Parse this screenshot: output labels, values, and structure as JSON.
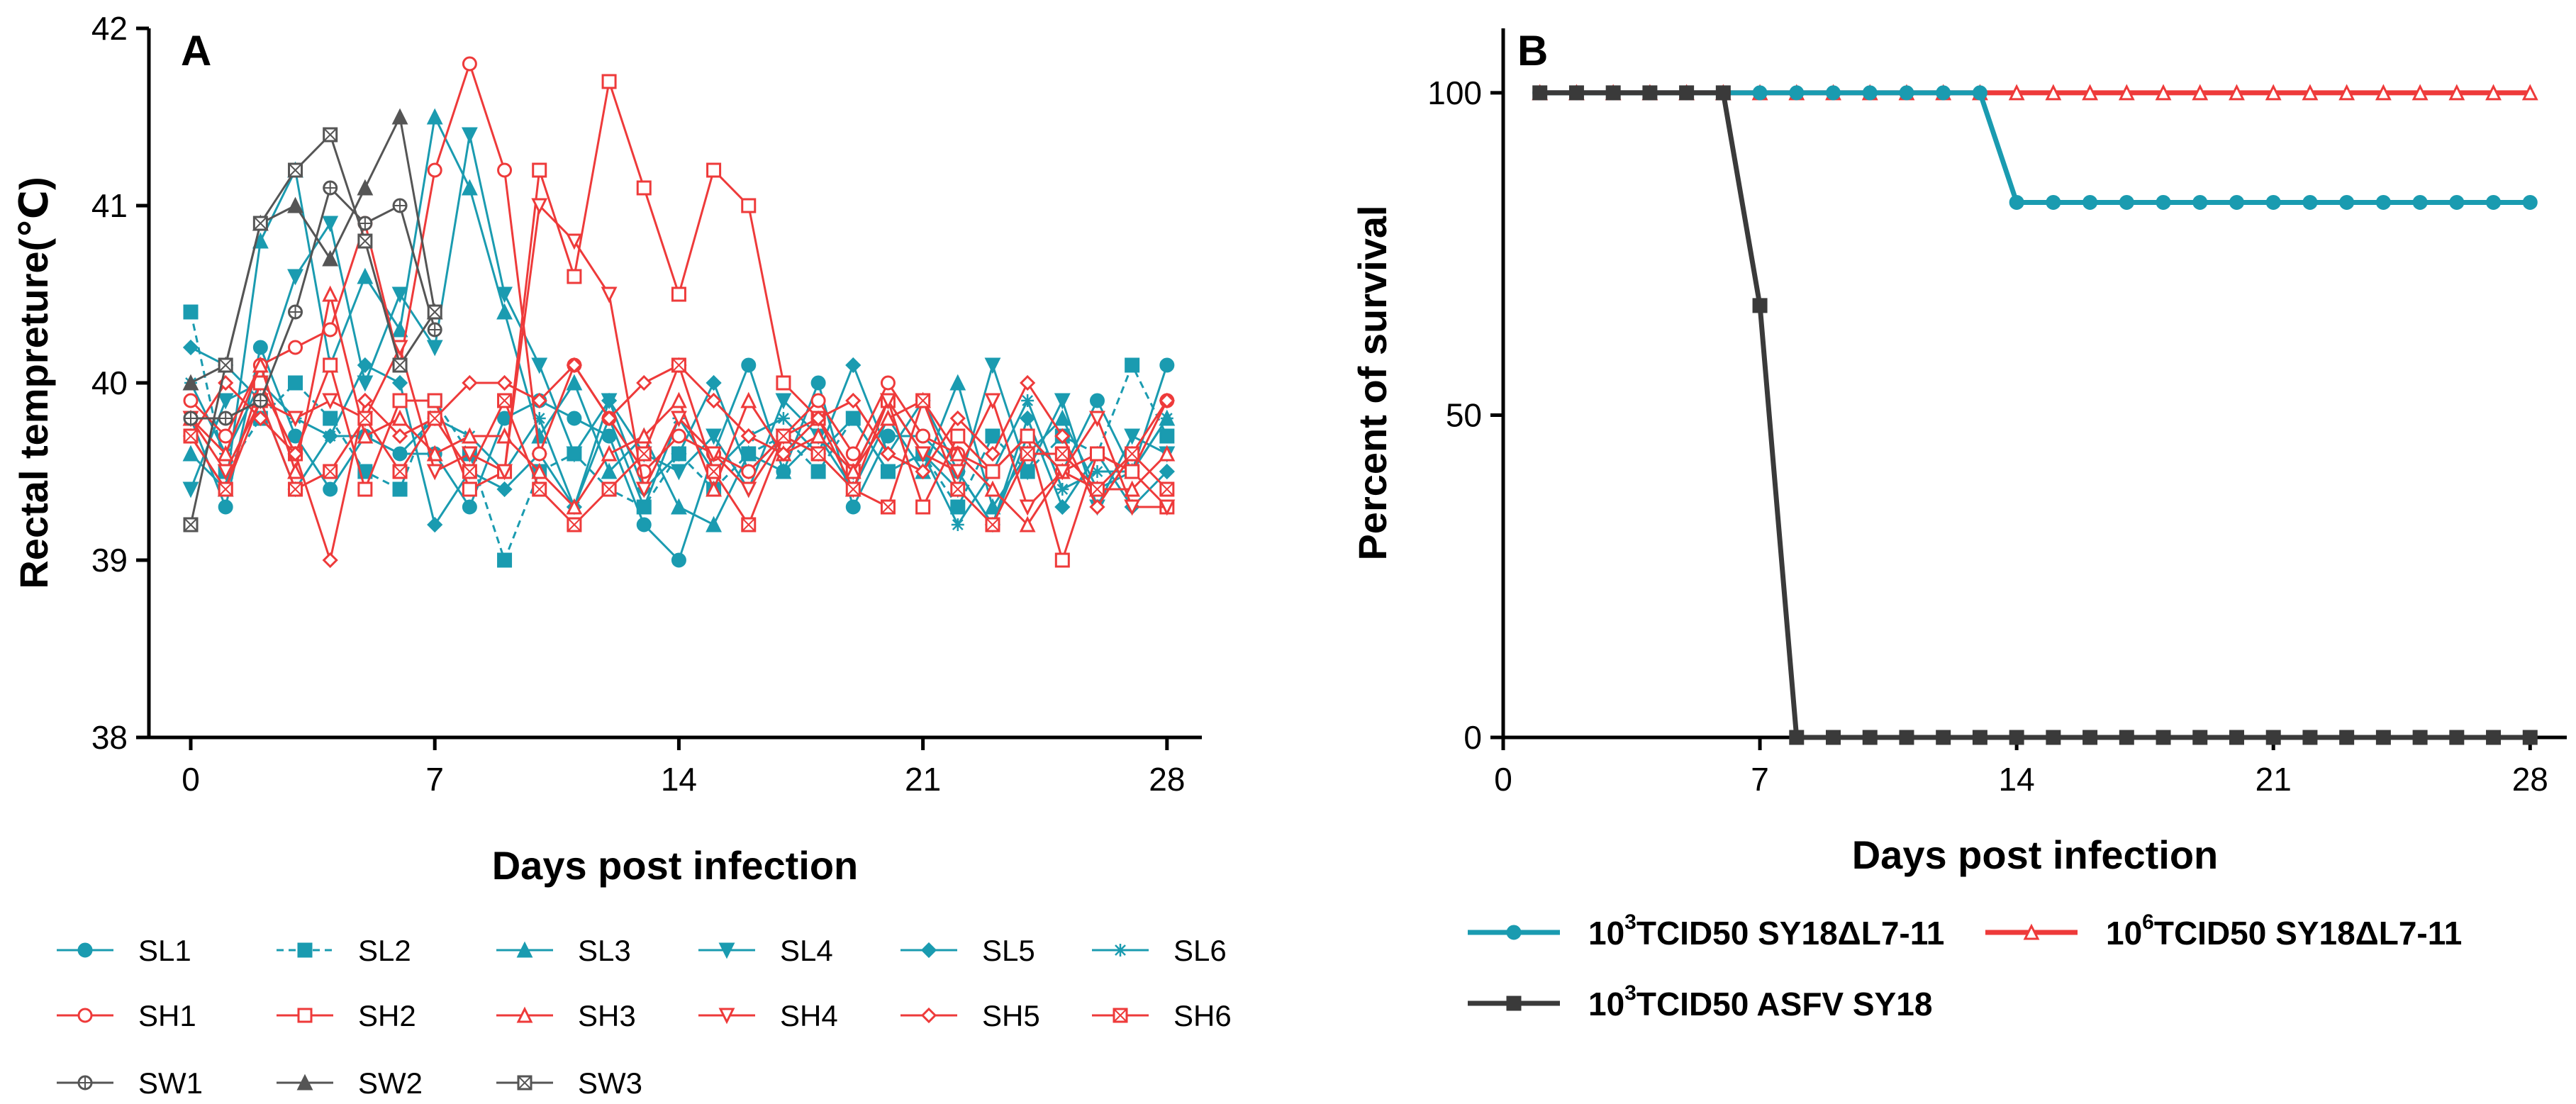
{
  "chart_data": [
    {
      "panel": "A",
      "type": "line",
      "xlabel": "Days post infection",
      "ylabel": "Rectal tempreture(℃)",
      "xlim": [
        -1.2,
        29
      ],
      "ylim": [
        38,
        42
      ],
      "xticks": [
        0,
        7,
        14,
        21,
        28
      ],
      "yticks": [
        38,
        39,
        40,
        41,
        42
      ],
      "legend_position": "bottom",
      "colors": {
        "SL": "#1a9bb0",
        "SH": "#ee3a3a",
        "SW": "#555555"
      },
      "series": [
        {
          "name": "SL1",
          "group": "SL",
          "marker": "circle",
          "dash": false,
          "x": [
            0,
            1,
            2,
            3,
            4,
            5,
            6,
            7,
            8,
            9,
            10,
            11,
            12,
            13,
            14,
            15,
            16,
            17,
            18,
            19,
            20,
            21,
            22,
            23,
            24,
            25,
            26,
            27,
            28
          ],
          "y": [
            39.8,
            39.3,
            40.2,
            39.7,
            39.4,
            39.7,
            39.6,
            39.6,
            39.3,
            39.8,
            39.9,
            39.8,
            39.7,
            39.2,
            39.0,
            39.6,
            40.1,
            39.5,
            40.0,
            39.3,
            39.7,
            39.7,
            39.5,
            39.2,
            39.7,
            39.5,
            39.9,
            39.5,
            40.1
          ]
        },
        {
          "name": "SL2",
          "group": "SL",
          "marker": "square",
          "dash": true,
          "x": [
            0,
            1,
            2,
            3,
            4,
            5,
            6,
            7,
            8,
            9,
            10,
            11,
            12,
            13,
            14,
            15,
            16,
            17,
            18,
            19,
            20,
            21,
            22,
            23,
            24,
            25,
            26,
            27,
            28
          ],
          "y": [
            40.4,
            39.5,
            39.8,
            40.0,
            39.8,
            39.5,
            39.4,
            39.9,
            39.6,
            39.0,
            39.5,
            39.6,
            39.4,
            39.3,
            39.6,
            39.4,
            39.6,
            39.7,
            39.5,
            39.8,
            39.5,
            39.6,
            39.3,
            39.7,
            39.5,
            39.7,
            39.6,
            40.1,
            39.7
          ]
        },
        {
          "name": "SL3",
          "group": "SL",
          "marker": "triangle",
          "dash": false,
          "x": [
            0,
            1,
            2,
            3,
            4,
            5,
            6,
            7,
            8,
            9,
            10,
            11,
            12,
            13,
            14,
            15,
            16,
            17,
            18,
            19,
            20,
            21,
            22,
            23,
            24,
            25,
            26,
            27,
            28
          ],
          "y": [
            39.6,
            39.4,
            40.8,
            41.2,
            40.1,
            40.6,
            40.3,
            41.5,
            41.1,
            40.4,
            39.7,
            40.0,
            39.5,
            39.7,
            39.3,
            39.2,
            39.6,
            39.5,
            39.7,
            39.4,
            39.8,
            39.5,
            40.0,
            39.3,
            39.6,
            39.8,
            39.4,
            39.5,
            39.8
          ]
        },
        {
          "name": "SL4",
          "group": "SL",
          "marker": "triangle-down",
          "dash": false,
          "x": [
            0,
            1,
            2,
            3,
            4,
            5,
            6,
            7,
            8,
            9,
            10,
            11,
            12,
            13,
            14,
            15,
            16,
            17,
            18,
            19,
            20,
            21,
            22,
            23,
            24,
            25,
            26,
            27,
            28
          ],
          "y": [
            39.4,
            39.9,
            40.0,
            40.6,
            40.9,
            40.0,
            40.5,
            40.2,
            41.4,
            40.5,
            40.1,
            39.6,
            39.9,
            39.6,
            39.5,
            39.7,
            39.4,
            39.9,
            39.7,
            39.5,
            39.9,
            39.6,
            39.4,
            40.1,
            39.5,
            39.9,
            39.3,
            39.7,
            39.6
          ]
        },
        {
          "name": "SL5",
          "group": "SL",
          "marker": "diamond",
          "dash": false,
          "x": [
            0,
            1,
            2,
            3,
            4,
            5,
            6,
            7,
            8,
            9,
            10,
            11,
            12,
            13,
            14,
            15,
            16,
            17,
            18,
            19,
            20,
            21,
            22,
            23,
            24,
            25,
            26,
            27,
            28
          ],
          "y": [
            40.2,
            40.1,
            39.9,
            39.4,
            39.7,
            40.1,
            40.0,
            39.2,
            39.5,
            39.4,
            39.6,
            39.3,
            39.9,
            39.4,
            39.6,
            40.0,
            39.5,
            39.7,
            39.6,
            40.1,
            39.6,
            39.9,
            39.5,
            39.2,
            39.8,
            39.3,
            39.6,
            39.3,
            39.5
          ]
        },
        {
          "name": "SL6",
          "group": "SL",
          "marker": "star",
          "dash": false,
          "x": [
            0,
            1,
            2,
            3,
            4,
            5,
            6,
            7,
            8,
            9,
            10,
            11,
            12,
            13,
            14,
            15,
            16,
            17,
            18,
            19,
            20,
            21,
            22,
            23,
            24,
            25,
            26,
            27,
            28
          ],
          "y": [
            40.0,
            39.6,
            40.0,
            39.8,
            39.7,
            39.7,
            39.6,
            39.8,
            39.7,
            39.5,
            39.8,
            39.3,
            39.8,
            39.3,
            39.8,
            39.5,
            39.7,
            39.8,
            39.6,
            39.8,
            39.5,
            39.6,
            39.2,
            39.5,
            39.9,
            39.4,
            39.5,
            39.5,
            39.8
          ]
        },
        {
          "name": "SH1",
          "group": "SH",
          "marker": "circle-open",
          "dash": false,
          "x": [
            0,
            1,
            2,
            3,
            4,
            5,
            6,
            7,
            8,
            9,
            10,
            11,
            12,
            13,
            14,
            15,
            16,
            17,
            18,
            19,
            20,
            21,
            22,
            23,
            24,
            25,
            26,
            27,
            28
          ],
          "y": [
            39.9,
            39.7,
            40.1,
            40.2,
            40.3,
            40.9,
            40.1,
            41.2,
            41.8,
            41.2,
            39.6,
            40.1,
            39.8,
            39.5,
            39.7,
            39.6,
            39.5,
            39.7,
            39.9,
            39.6,
            40.0,
            39.7,
            39.6,
            39.5,
            39.7,
            39.5,
            39.6,
            39.5,
            39.9
          ]
        },
        {
          "name": "SH2",
          "group": "SH",
          "marker": "square-open",
          "dash": false,
          "x": [
            0,
            1,
            2,
            3,
            4,
            5,
            6,
            7,
            8,
            9,
            10,
            11,
            12,
            13,
            14,
            15,
            16,
            17,
            18,
            19,
            20,
            21,
            22,
            23,
            24,
            25,
            26,
            27,
            28
          ],
          "y": [
            39.7,
            39.4,
            40.0,
            39.6,
            40.1,
            39.4,
            39.9,
            39.9,
            39.4,
            39.5,
            41.2,
            40.6,
            41.7,
            41.1,
            40.5,
            41.2,
            41.0,
            40.0,
            39.8,
            39.5,
            39.9,
            39.3,
            39.7,
            39.5,
            39.7,
            39.0,
            39.6,
            39.5,
            39.3
          ]
        },
        {
          "name": "SH3",
          "group": "SH",
          "marker": "triangle-open",
          "dash": false,
          "x": [
            0,
            1,
            2,
            3,
            4,
            5,
            6,
            7,
            8,
            9,
            10,
            11,
            12,
            13,
            14,
            15,
            16,
            17,
            18,
            19,
            20,
            21,
            22,
            23,
            24,
            25,
            26,
            27,
            28
          ],
          "y": [
            39.8,
            39.6,
            40.1,
            39.5,
            40.5,
            39.7,
            39.8,
            39.6,
            39.7,
            39.7,
            39.5,
            39.3,
            39.6,
            39.7,
            39.9,
            39.4,
            39.9,
            39.6,
            39.7,
            39.5,
            39.8,
            39.9,
            39.6,
            39.4,
            39.2,
            39.5,
            39.4,
            39.4,
            39.6
          ]
        },
        {
          "name": "SH4",
          "group": "SH",
          "marker": "triangle-down-open",
          "dash": false,
          "x": [
            0,
            1,
            2,
            3,
            4,
            5,
            6,
            7,
            8,
            9,
            10,
            11,
            12,
            13,
            14,
            15,
            16,
            17,
            18,
            19,
            20,
            21,
            22,
            23,
            24,
            25,
            26,
            27,
            28
          ],
          "y": [
            39.8,
            39.5,
            39.9,
            39.8,
            39.9,
            39.8,
            40.2,
            39.5,
            39.6,
            39.5,
            41.0,
            40.8,
            40.5,
            39.4,
            39.8,
            39.6,
            39.4,
            39.7,
            39.8,
            39.4,
            39.9,
            39.6,
            39.5,
            39.9,
            39.3,
            39.5,
            39.8,
            39.3,
            39.3
          ]
        },
        {
          "name": "SH5",
          "group": "SH",
          "marker": "diamond-open",
          "dash": false,
          "x": [
            0,
            1,
            2,
            3,
            4,
            5,
            6,
            7,
            8,
            9,
            10,
            11,
            12,
            13,
            14,
            15,
            16,
            17,
            18,
            19,
            20,
            21,
            22,
            23,
            24,
            25,
            26,
            27,
            28
          ],
          "y": [
            39.7,
            40.0,
            39.8,
            39.6,
            39.0,
            39.9,
            39.7,
            39.8,
            40.0,
            40.0,
            39.9,
            40.1,
            39.8,
            40.0,
            40.1,
            39.9,
            39.7,
            39.6,
            39.8,
            39.9,
            39.6,
            39.5,
            39.8,
            39.6,
            40.0,
            39.7,
            39.3,
            39.6,
            39.9
          ]
        },
        {
          "name": "SH6",
          "group": "SH",
          "marker": "square-cross",
          "dash": false,
          "x": [
            0,
            1,
            2,
            3,
            4,
            5,
            6,
            7,
            8,
            9,
            10,
            11,
            12,
            13,
            14,
            15,
            16,
            17,
            18,
            19,
            20,
            21,
            22,
            23,
            24,
            25,
            26,
            27,
            28
          ],
          "y": [
            39.7,
            39.4,
            39.9,
            39.4,
            39.5,
            39.8,
            39.5,
            39.8,
            39.5,
            39.9,
            39.4,
            39.2,
            39.4,
            39.6,
            40.1,
            39.5,
            39.2,
            39.7,
            39.6,
            39.4,
            39.3,
            39.9,
            39.4,
            39.2,
            39.6,
            39.6,
            39.4,
            39.6,
            39.4
          ]
        },
        {
          "name": "SW1",
          "group": "SW",
          "marker": "circle-cross",
          "dash": false,
          "x": [
            0,
            1,
            2,
            3,
            4,
            5,
            6,
            7
          ],
          "y": [
            39.8,
            39.8,
            39.9,
            40.4,
            41.1,
            40.9,
            41.0,
            40.3
          ]
        },
        {
          "name": "SW2",
          "group": "SW",
          "marker": "triangle",
          "dash": false,
          "x": [
            0,
            1,
            2,
            3,
            4,
            5,
            6,
            7
          ],
          "y": [
            40.0,
            40.1,
            40.9,
            41.0,
            40.7,
            41.1,
            41.5,
            40.4
          ]
        },
        {
          "name": "SW3",
          "group": "SW",
          "marker": "square-cross",
          "dash": false,
          "x": [
            0,
            1,
            2,
            3,
            4,
            5,
            6,
            7
          ],
          "y": [
            39.2,
            40.1,
            40.9,
            41.2,
            41.4,
            40.8,
            40.1,
            40.4
          ]
        }
      ]
    },
    {
      "panel": "B",
      "type": "line",
      "xlabel": "Days post infection",
      "ylabel": "Percent of survival",
      "xlim": [
        0,
        29
      ],
      "ylim": [
        0,
        110
      ],
      "xticks": [
        0,
        7,
        14,
        21,
        28
      ],
      "yticks": [
        0,
        50,
        100
      ],
      "legend_position": "bottom",
      "series": [
        {
          "name": "TCID50 SY18ΔL7-11",
          "exponent": "3",
          "prefix": "10",
          "color": "#1a9bb0",
          "marker": "circle",
          "x": [
            1,
            2,
            3,
            4,
            5,
            6,
            7,
            8,
            9,
            10,
            11,
            12,
            13,
            14,
            15,
            16,
            17,
            18,
            19,
            20,
            21,
            22,
            23,
            24,
            25,
            26,
            27,
            28
          ],
          "y": [
            100,
            100,
            100,
            100,
            100,
            100,
            100,
            100,
            100,
            100,
            100,
            100,
            100,
            83,
            83,
            83,
            83,
            83,
            83,
            83,
            83,
            83,
            83,
            83,
            83,
            83,
            83,
            83
          ]
        },
        {
          "name": "TCID50 SY18ΔL7-11",
          "exponent": "6",
          "prefix": "10",
          "color": "#ee3a3a",
          "marker": "triangle-open",
          "x": [
            1,
            2,
            3,
            4,
            5,
            6,
            7,
            8,
            9,
            10,
            11,
            12,
            13,
            14,
            15,
            16,
            17,
            18,
            19,
            20,
            21,
            22,
            23,
            24,
            25,
            26,
            27,
            28
          ],
          "y": [
            100,
            100,
            100,
            100,
            100,
            100,
            100,
            100,
            100,
            100,
            100,
            100,
            100,
            100,
            100,
            100,
            100,
            100,
            100,
            100,
            100,
            100,
            100,
            100,
            100,
            100,
            100,
            100
          ]
        },
        {
          "name": "TCID50 ASFV SY18",
          "exponent": "3",
          "prefix": "10",
          "color": "#3a3a3a",
          "marker": "square",
          "x": [
            1,
            2,
            3,
            4,
            5,
            6,
            7,
            8,
            9,
            10,
            11,
            12,
            13,
            14,
            15,
            16,
            17,
            18,
            19,
            20,
            21,
            22,
            23,
            24,
            25,
            26,
            27,
            28
          ],
          "y": [
            100,
            100,
            100,
            100,
            100,
            100,
            67,
            0,
            0,
            0,
            0,
            0,
            0,
            0,
            0,
            0,
            0,
            0,
            0,
            0,
            0,
            0,
            0,
            0,
            0,
            0,
            0,
            0
          ]
        }
      ]
    }
  ]
}
